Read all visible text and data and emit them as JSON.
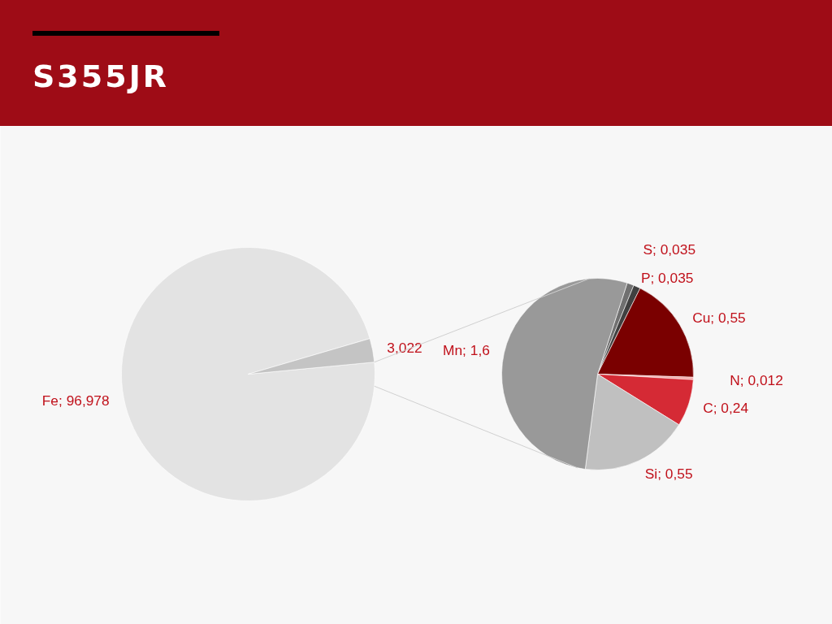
{
  "chart_data": [
    {
      "type": "pie",
      "title": "S355JR",
      "categories": [
        "Fe",
        null
      ],
      "values": [
        96.978,
        3.022
      ],
      "colors": [
        "#e3e3e3",
        "#c4c4c4"
      ],
      "value_labels": [
        "96,978",
        "3,022"
      ]
    },
    {
      "type": "pie",
      "categories": [
        "S",
        "P",
        "Cu",
        "N",
        "C",
        "Si",
        "Mn"
      ],
      "values": [
        0.035,
        0.035,
        0.55,
        0.012,
        0.24,
        0.55,
        1.6
      ],
      "colors": [
        "#707070",
        "#404040",
        "#7a0000",
        "#f4a3a3",
        "#d52a35",
        "#c0c0c0",
        "#999999"
      ],
      "value_labels": [
        "0,035",
        "0,035",
        "0,55",
        "0,012",
        "0,24",
        "0,55",
        "1,6"
      ]
    }
  ]
}
